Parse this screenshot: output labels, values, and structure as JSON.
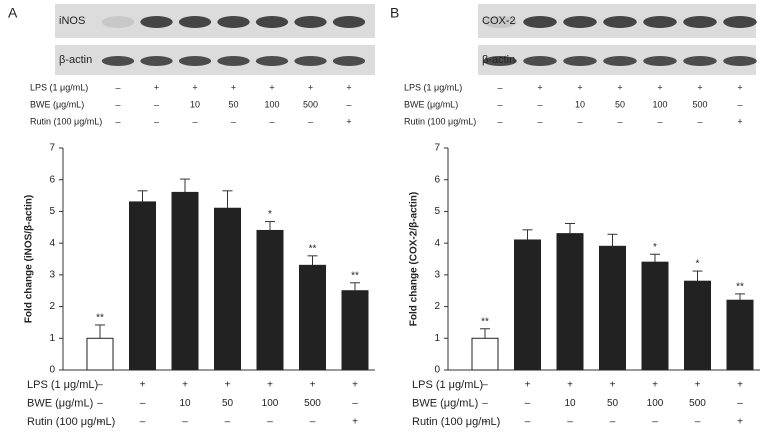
{
  "chart_data": [
    {
      "type": "bar",
      "panel_label": "A",
      "blot_labels": [
        "iNOS",
        "β-actin"
      ],
      "ylabel": "Fold change (iNOS/β-actin)",
      "treatments": [
        {
          "label": "LPS (1 μg/mL)",
          "values": [
            "–",
            "+",
            "+",
            "+",
            "+",
            "+",
            "+"
          ]
        },
        {
          "label": "BWE (μg/mL)",
          "values": [
            "–",
            "–",
            "10",
            "50",
            "100",
            "500",
            "–"
          ]
        },
        {
          "label": "Rutin (100 μg/mL)",
          "values": [
            "–",
            "–",
            "–",
            "–",
            "–",
            "–",
            "+"
          ]
        }
      ],
      "values": [
        1.0,
        5.3,
        5.6,
        5.1,
        4.4,
        3.3,
        2.5
      ],
      "errors": [
        0.42,
        0.35,
        0.42,
        0.55,
        0.28,
        0.3,
        0.25
      ],
      "significance": [
        "**",
        null,
        null,
        null,
        "*",
        "**",
        "**"
      ],
      "colors": [
        "#ffffff",
        "#222222",
        "#222222",
        "#222222",
        "#222222",
        "#222222",
        "#222222"
      ],
      "ylim": [
        0,
        7
      ],
      "yticks": [
        0,
        1,
        2,
        3,
        4,
        5,
        6,
        7
      ]
    },
    {
      "type": "bar",
      "panel_label": "B",
      "blot_labels": [
        "COX-2",
        "β-actin"
      ],
      "ylabel": "Fold change (COX-2/β-actin)",
      "treatments": [
        {
          "label": "LPS (1 μg/mL)",
          "values": [
            "–",
            "+",
            "+",
            "+",
            "+",
            "+",
            "+"
          ]
        },
        {
          "label": "BWE (μg/mL)",
          "values": [
            "–",
            "–",
            "10",
            "50",
            "100",
            "500",
            "–"
          ]
        },
        {
          "label": "Rutin (100 μg/mL)",
          "values": [
            "–",
            "–",
            "–",
            "–",
            "–",
            "–",
            "+"
          ]
        }
      ],
      "values": [
        1.0,
        4.1,
        4.3,
        3.9,
        3.4,
        2.8,
        2.2
      ],
      "errors": [
        0.3,
        0.32,
        0.32,
        0.38,
        0.25,
        0.32,
        0.2
      ],
      "significance": [
        "**",
        null,
        null,
        null,
        "*",
        "*",
        "**"
      ],
      "colors": [
        "#ffffff",
        "#222222",
        "#222222",
        "#222222",
        "#222222",
        "#222222",
        "#222222"
      ],
      "ylim": [
        0,
        7
      ],
      "yticks": [
        0,
        1,
        2,
        3,
        4,
        5,
        6,
        7
      ]
    }
  ]
}
